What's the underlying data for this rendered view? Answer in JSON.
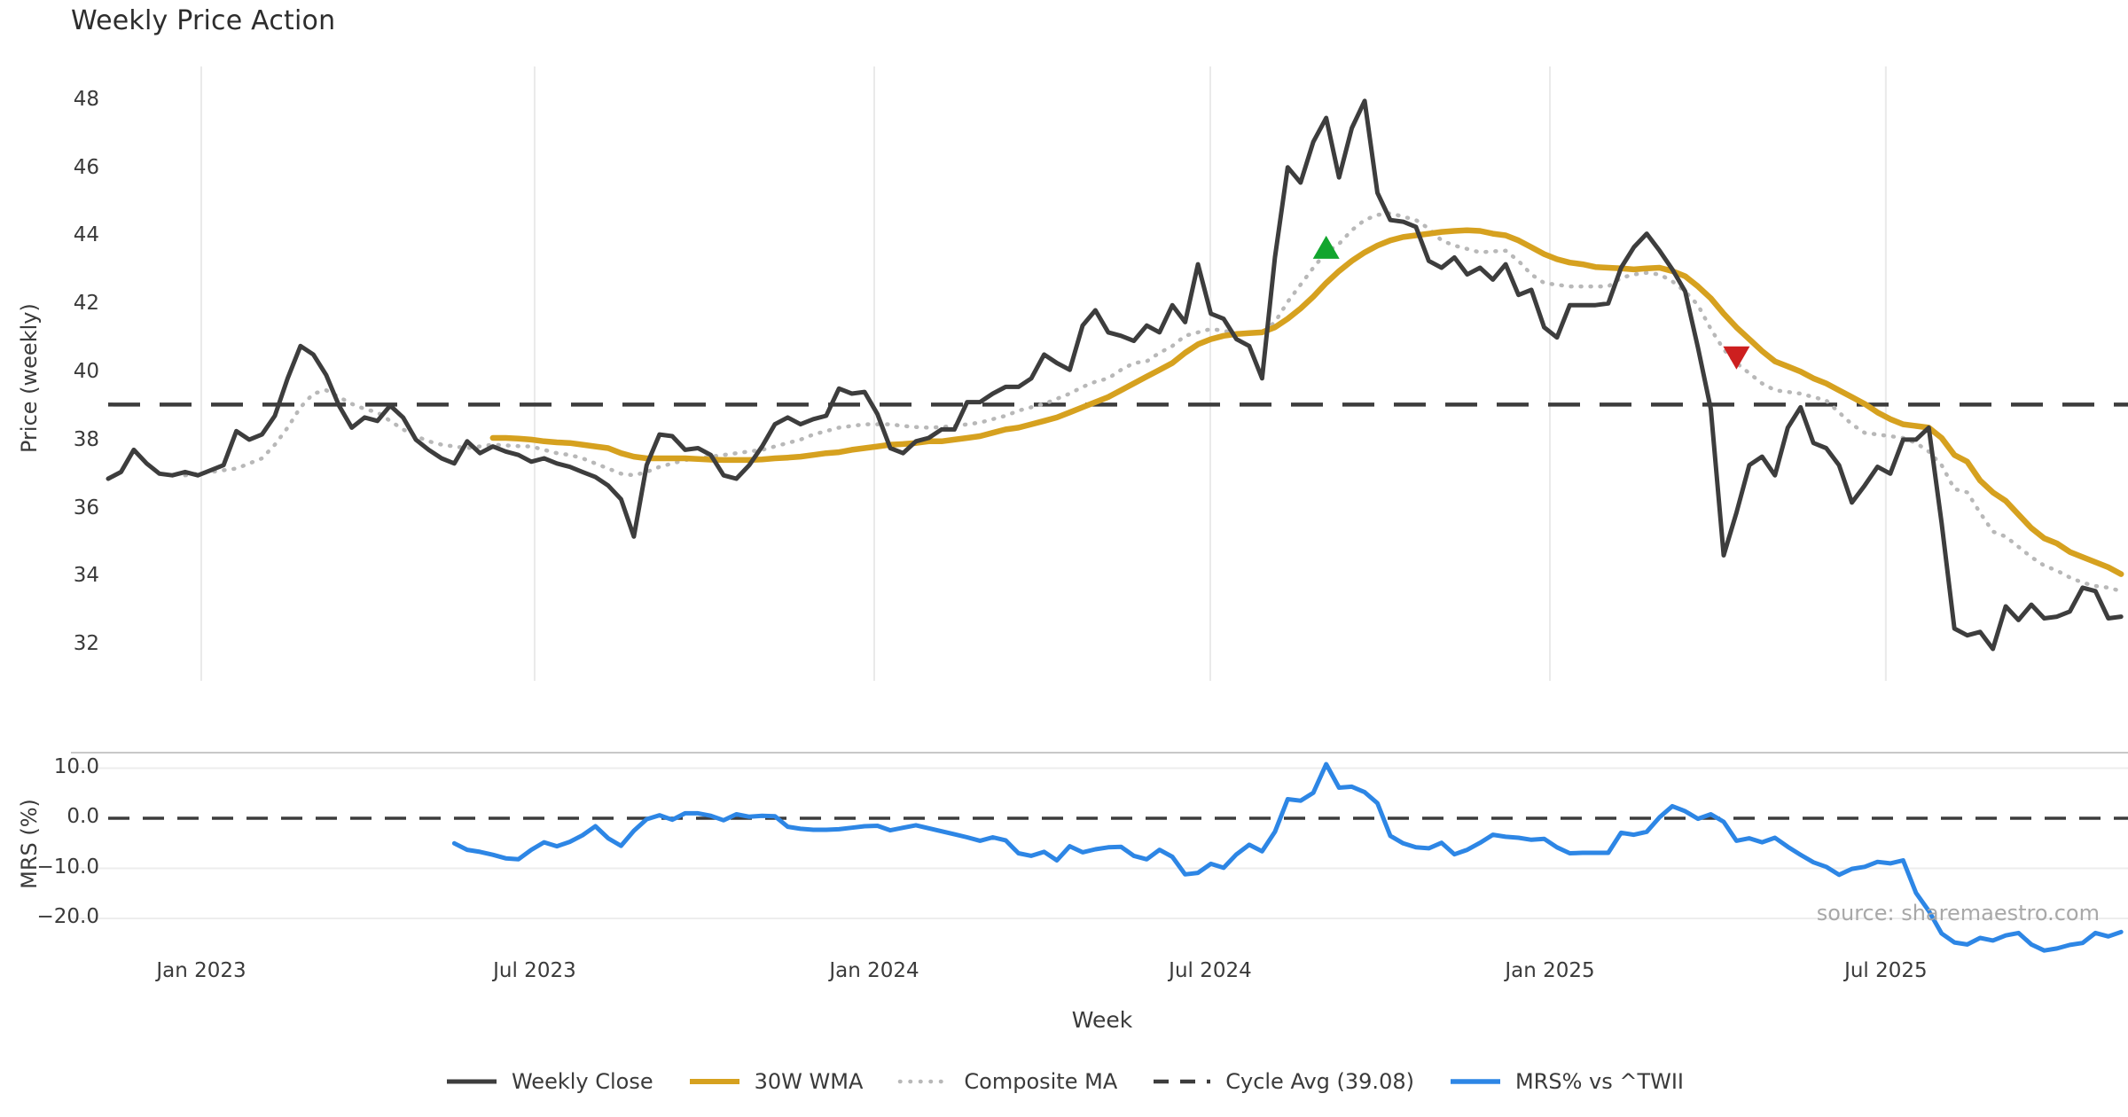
{
  "title": "Weekly Price Action",
  "source_note": "source: sharemaestro.com",
  "axes": {
    "x_label": "Week",
    "price_axis_label": "Price (weekly)",
    "mrs_axis_label": "MRS (%)",
    "price_ticks": [
      {
        "label": "48",
        "value": 48
      },
      {
        "label": "46",
        "value": 46
      },
      {
        "label": "44",
        "value": 44
      },
      {
        "label": "42",
        "value": 42
      },
      {
        "label": "40",
        "value": 40
      },
      {
        "label": "38",
        "value": 38
      },
      {
        "label": "36",
        "value": 36
      },
      {
        "label": "34",
        "value": 34
      },
      {
        "label": "32",
        "value": 32
      }
    ],
    "mrs_ticks": [
      {
        "label": "10.0",
        "value": 10
      },
      {
        "label": "0.0",
        "value": 0
      },
      {
        "label": "−10.0",
        "value": -10
      },
      {
        "label": "−20.0",
        "value": -20
      }
    ],
    "x_ticks": [
      {
        "label": "Jan 2023",
        "week": 7.26
      },
      {
        "label": "Jul 2023",
        "week": 33.26
      },
      {
        "label": "Jan 2024",
        "week": 59.75
      },
      {
        "label": "Jul 2024",
        "week": 85.96
      },
      {
        "label": "Jan 2025",
        "week": 112.45
      },
      {
        "label": "Jul 2025",
        "week": 138.65
      }
    ]
  },
  "legend": {
    "items": [
      {
        "label": "Weekly Close",
        "style": "solid",
        "color": "#3d3d3d"
      },
      {
        "label": "30W WMA",
        "style": "solid",
        "color": "#d6a11f"
      },
      {
        "label": "Composite MA",
        "style": "dotted",
        "color": "#b8b8b8"
      },
      {
        "label": "Cycle Avg (39.08)",
        "style": "dashed",
        "color": "#3c3c3c"
      },
      {
        "label": "MRS% vs ^TWII",
        "style": "solid",
        "color": "#2d86e5"
      }
    ]
  },
  "colors": {
    "weekly_close": "#3d3d3d",
    "wma": "#d6a11f",
    "composite": "#b8b8b8",
    "cycle_avg": "#3c3c3c",
    "mrs": "#2d86e5",
    "marker_up": "#12a52e",
    "marker_down": "#cd1f1f",
    "gridline": "#eaeaea",
    "mrs_gridline": "#ededed",
    "mrs_frame": "#c8c8c8",
    "background": "#ffffff"
  },
  "chart_data": {
    "type": "line",
    "title": "Weekly Price Action",
    "x_unit": "week_index",
    "xlabel": "Week",
    "panels": [
      {
        "name": "price",
        "ylabel": "Price (weekly)",
        "ylim": [
          31.0,
          49.0
        ],
        "yticks": [
          48,
          46,
          44,
          42,
          40,
          38,
          36,
          34,
          32
        ],
        "grid": "vertical-only",
        "cycle_avg": 39.08,
        "series": [
          {
            "name": "Weekly Close",
            "style": "solid",
            "color": "#3d3d3d",
            "start_week": 0,
            "values": [
              36.9,
              37.1,
              37.75,
              37.35,
              37.05,
              37.0,
              37.1,
              37.0,
              37.15,
              37.3,
              38.3,
              38.05,
              38.2,
              38.75,
              39.85,
              40.8,
              40.55,
              39.95,
              39.05,
              38.4,
              38.7,
              38.6,
              39.05,
              38.7,
              38.05,
              37.75,
              37.5,
              37.35,
              38.0,
              37.65,
              37.85,
              37.7,
              37.6,
              37.4,
              37.5,
              37.35,
              37.25,
              37.1,
              36.95,
              36.7,
              36.3,
              35.2,
              37.3,
              38.2,
              38.15,
              37.75,
              37.8,
              37.6,
              37.0,
              36.9,
              37.3,
              37.85,
              38.5,
              38.7,
              38.5,
              38.65,
              38.75,
              39.55,
              39.4,
              39.45,
              38.8,
              37.8,
              37.65,
              38.0,
              38.1,
              38.35,
              38.35,
              39.15,
              39.15,
              39.4,
              39.6,
              39.6,
              39.85,
              40.55,
              40.3,
              40.1,
              41.4,
              41.85,
              41.2,
              41.1,
              40.95,
              41.4,
              41.2,
              42.0,
              41.5,
              43.2,
              41.75,
              41.6,
              41.0,
              40.8,
              39.85,
              43.4,
              46.05,
              45.6,
              46.8,
              47.5,
              45.75,
              47.2,
              48.0,
              45.3,
              44.5,
              44.45,
              44.3,
              43.3,
              43.1,
              43.4,
              42.9,
              43.1,
              42.75,
              43.2,
              42.3,
              42.45,
              41.35,
              41.05,
              42.0,
              42.0,
              42.0,
              42.05,
              43.1,
              43.7,
              44.1,
              43.6,
              43.05,
              42.4,
              40.75,
              38.95,
              34.65,
              35.9,
              37.3,
              37.55,
              37.0,
              38.4,
              39.0,
              37.95,
              37.8,
              37.3,
              36.2,
              36.7,
              37.25,
              37.05,
              38.05,
              38.05,
              38.4,
              35.6,
              32.5,
              32.3,
              32.4,
              31.9,
              33.15,
              32.75,
              33.2,
              32.8,
              32.85,
              33.0,
              33.7,
              33.6,
              32.8,
              32.85
            ]
          },
          {
            "name": "30W WMA",
            "style": "solid",
            "color": "#d6a11f",
            "start_week": 30,
            "values": [
              38.1,
              38.1,
              38.08,
              38.05,
              38.0,
              37.97,
              37.95,
              37.9,
              37.85,
              37.8,
              37.65,
              37.55,
              37.5,
              37.5,
              37.5,
              37.5,
              37.48,
              37.46,
              37.45,
              37.45,
              37.45,
              37.47,
              37.5,
              37.52,
              37.55,
              37.6,
              37.65,
              37.68,
              37.75,
              37.8,
              37.85,
              37.9,
              37.92,
              37.95,
              38.0,
              38.0,
              38.05,
              38.1,
              38.15,
              38.25,
              38.35,
              38.4,
              38.5,
              38.6,
              38.7,
              38.85,
              39.0,
              39.15,
              39.3,
              39.5,
              39.7,
              39.9,
              40.1,
              40.3,
              40.6,
              40.85,
              41.0,
              41.1,
              41.15,
              41.18,
              41.2,
              41.35,
              41.6,
              41.9,
              42.25,
              42.65,
              43.0,
              43.3,
              43.55,
              43.75,
              43.9,
              44.0,
              44.05,
              44.1,
              44.15,
              44.18,
              44.2,
              44.18,
              44.1,
              44.05,
              43.9,
              43.7,
              43.5,
              43.35,
              43.25,
              43.2,
              43.12,
              43.1,
              43.08,
              43.05,
              43.08,
              43.1,
              43.0,
              42.85,
              42.55,
              42.2,
              41.75,
              41.35,
              41.0,
              40.65,
              40.35,
              40.2,
              40.05,
              39.85,
              39.7,
              39.5,
              39.3,
              39.1,
              38.85,
              38.65,
              38.5,
              38.45,
              38.4,
              38.1,
              37.6,
              37.4,
              36.85,
              36.5,
              36.25,
              35.85,
              35.45,
              35.15,
              35.0,
              34.75,
              34.6,
              34.45,
              34.3,
              34.1
            ]
          },
          {
            "name": "Composite MA",
            "style": "dotted",
            "color": "#b8b8b8",
            "start_week": 6,
            "values": [
              37.0,
              37.05,
              37.1,
              37.15,
              37.2,
              37.35,
              37.5,
              37.9,
              38.4,
              39.0,
              39.4,
              39.5,
              39.3,
              39.1,
              38.95,
              38.85,
              38.6,
              38.35,
              38.15,
              38.0,
              37.9,
              37.85,
              37.8,
              37.85,
              37.9,
              37.88,
              37.86,
              37.85,
              37.75,
              37.65,
              37.6,
              37.5,
              37.35,
              37.2,
              37.05,
              37.0,
              37.1,
              37.25,
              37.35,
              37.45,
              37.5,
              37.55,
              37.6,
              37.65,
              37.7,
              37.75,
              37.85,
              37.95,
              38.05,
              38.2,
              38.3,
              38.4,
              38.45,
              38.5,
              38.5,
              38.5,
              38.45,
              38.42,
              38.4,
              38.42,
              38.45,
              38.5,
              38.55,
              38.65,
              38.75,
              38.9,
              39.0,
              39.1,
              39.25,
              39.4,
              39.6,
              39.75,
              39.85,
              40.1,
              40.3,
              40.35,
              40.6,
              40.8,
              41.1,
              41.2,
              41.3,
              41.25,
              41.15,
              41.15,
              41.2,
              41.5,
              42.1,
              42.6,
              43.1,
              43.55,
              43.8,
              44.2,
              44.5,
              44.65,
              44.7,
              44.6,
              44.5,
              44.25,
              43.9,
              43.75,
              43.65,
              43.55,
              43.58,
              43.6,
              43.3,
              42.9,
              42.65,
              42.6,
              42.55,
              42.55,
              42.55,
              42.55,
              42.8,
              42.9,
              42.95,
              42.9,
              42.7,
              42.4,
              42.0,
              41.3,
              40.7,
              40.3,
              40.0,
              39.7,
              39.5,
              39.45,
              39.4,
              39.3,
              39.2,
              38.85,
              38.5,
              38.25,
              38.2,
              38.15,
              38.1,
              37.95,
              37.7,
              37.3,
              36.6,
              36.5,
              35.9,
              35.35,
              35.2,
              34.9,
              34.6,
              34.35,
              34.2,
              34.0,
              33.85,
              33.75,
              33.7,
              33.6
            ]
          },
          {
            "name": "Cycle Avg (39.08)",
            "style": "dashed",
            "color": "#3c3c3c",
            "value": 39.08
          }
        ],
        "markers": [
          {
            "shape": "triangle-up",
            "color": "#12a52e",
            "week": 95,
            "value": 43.7
          },
          {
            "shape": "triangle-down",
            "color": "#cd1f1f",
            "week": 127,
            "value": 40.45
          }
        ]
      },
      {
        "name": "mrs",
        "ylabel": "MRS (%)",
        "ylim": [
          -27.4,
          13.1
        ],
        "yticks": [
          10,
          0,
          -10,
          -20
        ],
        "grid": "horizontal-only",
        "zero_line": 0,
        "series": [
          {
            "name": "MRS% vs ^TWII",
            "style": "solid",
            "color": "#2d86e5",
            "start_week": 27,
            "values": [
              -5.0,
              -6.3,
              -6.7,
              -7.3,
              -8.0,
              -8.2,
              -6.3,
              -4.8,
              -5.6,
              -4.7,
              -3.4,
              -1.6,
              -4.0,
              -5.5,
              -2.5,
              -0.2,
              0.6,
              -0.3,
              1.0,
              1.0,
              0.5,
              -0.4,
              0.8,
              0.3,
              0.5,
              0.4,
              -1.7,
              -2.1,
              -2.3,
              -2.3,
              -2.2,
              -1.9,
              -1.6,
              -1.5,
              -2.4,
              -1.9,
              -1.4,
              -2.0,
              -2.6,
              -3.2,
              -3.8,
              -4.5,
              -3.8,
              -4.4,
              -7.0,
              -7.5,
              -6.7,
              -8.4,
              -5.6,
              -6.8,
              -6.2,
              -5.8,
              -5.7,
              -7.5,
              -8.2,
              -6.3,
              -7.7,
              -11.2,
              -10.9,
              -9.1,
              -9.9,
              -7.2,
              -5.3,
              -6.6,
              -2.7,
              3.8,
              3.5,
              5.1,
              10.8,
              6.1,
              6.3,
              5.2,
              3.0,
              -3.5,
              -5.0,
              -5.8,
              -6.0,
              -4.9,
              -7.2,
              -6.3,
              -4.9,
              -3.3,
              -3.7,
              -3.9,
              -4.3,
              -4.1,
              -5.8,
              -7.0,
              -6.9,
              -6.9,
              -6.9,
              -2.9,
              -3.3,
              -2.7,
              0.2,
              2.4,
              1.4,
              -0.1,
              0.8,
              -0.7,
              -4.5,
              -4.0,
              -4.8,
              -3.9,
              -5.7,
              -7.3,
              -8.8,
              -9.7,
              -11.3,
              -10.1,
              -9.7,
              -8.7,
              -9.0,
              -8.4,
              -14.9,
              -18.5,
              -23.0,
              -24.8,
              -25.2,
              -23.9,
              -24.4,
              -23.4,
              -22.9,
              -25.2,
              -26.4,
              -26.0,
              -25.3,
              -24.9,
              -22.9,
              -23.6,
              -22.7
            ]
          }
        ]
      }
    ]
  }
}
